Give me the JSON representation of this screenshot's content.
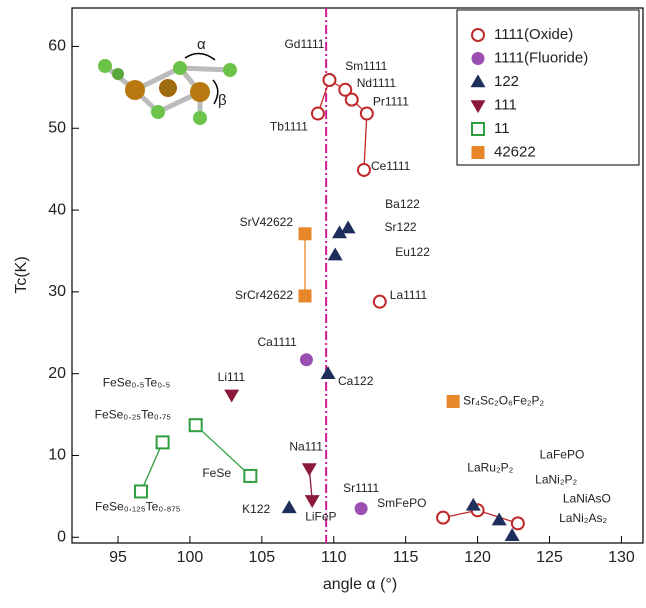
{
  "chart_data": {
    "type": "scatter",
    "xlabel": "angle α (°)",
    "ylabel": "Tc(K)",
    "xlim": [
      91.8,
      131.5
    ],
    "ylim": [
      -0.7,
      64.7
    ],
    "xticks": [
      95,
      100,
      105,
      110,
      115,
      120,
      125,
      130
    ],
    "yticks": [
      0,
      10,
      20,
      30,
      40,
      50,
      60
    ],
    "legend": "upper right",
    "reference_line": {
      "x": 109.47,
      "color": "#cc1a99"
    },
    "inset_labels": [
      "α",
      "β"
    ],
    "series": [
      {
        "name": "1111(Oxide)",
        "color": "#c0282a",
        "marker": "circle-open",
        "x": [
          109.7,
          110.8,
          111.25,
          112.3,
          108.9,
          112.1,
          113.2,
          117.6,
          120.0,
          122.8
        ],
        "values": [
          55.9,
          54.7,
          53.5,
          51.8,
          51.8,
          44.9,
          28.8,
          2.4,
          3.3,
          1.7
        ],
        "labels": [
          "Gd1111",
          "Sm1111",
          "Nd1111",
          "Pr1111",
          "Tb1111",
          "Ce1111",
          "La1111",
          "SmFePO",
          "LaFePO",
          "LaNiAsO"
        ]
      },
      {
        "name": "1111(Fluoride)",
        "color": "#9b4fb0",
        "marker": "circle",
        "x": [
          108.1,
          111.9
        ],
        "values": [
          21.7,
          3.5
        ],
        "labels": [
          "Ca1111",
          "Sr1111"
        ]
      },
      {
        "name": "122",
        "color": "#1f2f5c",
        "marker": "triangle-up",
        "x": [
          111.0,
          110.4,
          110.1,
          109.6,
          106.9,
          119.7,
          121.5,
          122.4
        ],
        "values": [
          37.8,
          37.2,
          34.5,
          20.0,
          3.6,
          3.9,
          2.1,
          0.2
        ],
        "labels": [
          "Ba122",
          "Sr122",
          "Eu122",
          "Ca122",
          "K122",
          "LaRu₂P₂",
          "LaNi₂P₂",
          "LaNi₂As₂"
        ]
      },
      {
        "name": "111",
        "color": "#8b1a3a",
        "marker": "triangle-down",
        "x": [
          102.9,
          108.3,
          108.5
        ],
        "values": [
          17.4,
          8.4,
          4.5
        ],
        "labels": [
          "Li111",
          "Na111",
          "LiFeP"
        ]
      },
      {
        "name": "11",
        "color": "#2e9e3e",
        "marker": "square-open",
        "x": [
          104.2,
          100.4,
          98.1,
          96.6
        ],
        "values": [
          7.5,
          13.7,
          11.6,
          5.6
        ],
        "labels": [
          "FeSe",
          "FeSe₀.₅Te₀.₅",
          "FeSe₀.₂₅Te₀.₇₅",
          "FeSe₀.₁₂₅Te₀.₈₇₅"
        ]
      },
      {
        "name": "42622",
        "color": "#e8862a",
        "marker": "square",
        "x": [
          108.0,
          108.0,
          118.3
        ],
        "values": [
          37.1,
          29.5,
          16.6
        ],
        "labels": [
          "SrV42622",
          "SrCr42622",
          "Sr₄Sc₂O₆Fe₂P₂"
        ]
      }
    ]
  }
}
